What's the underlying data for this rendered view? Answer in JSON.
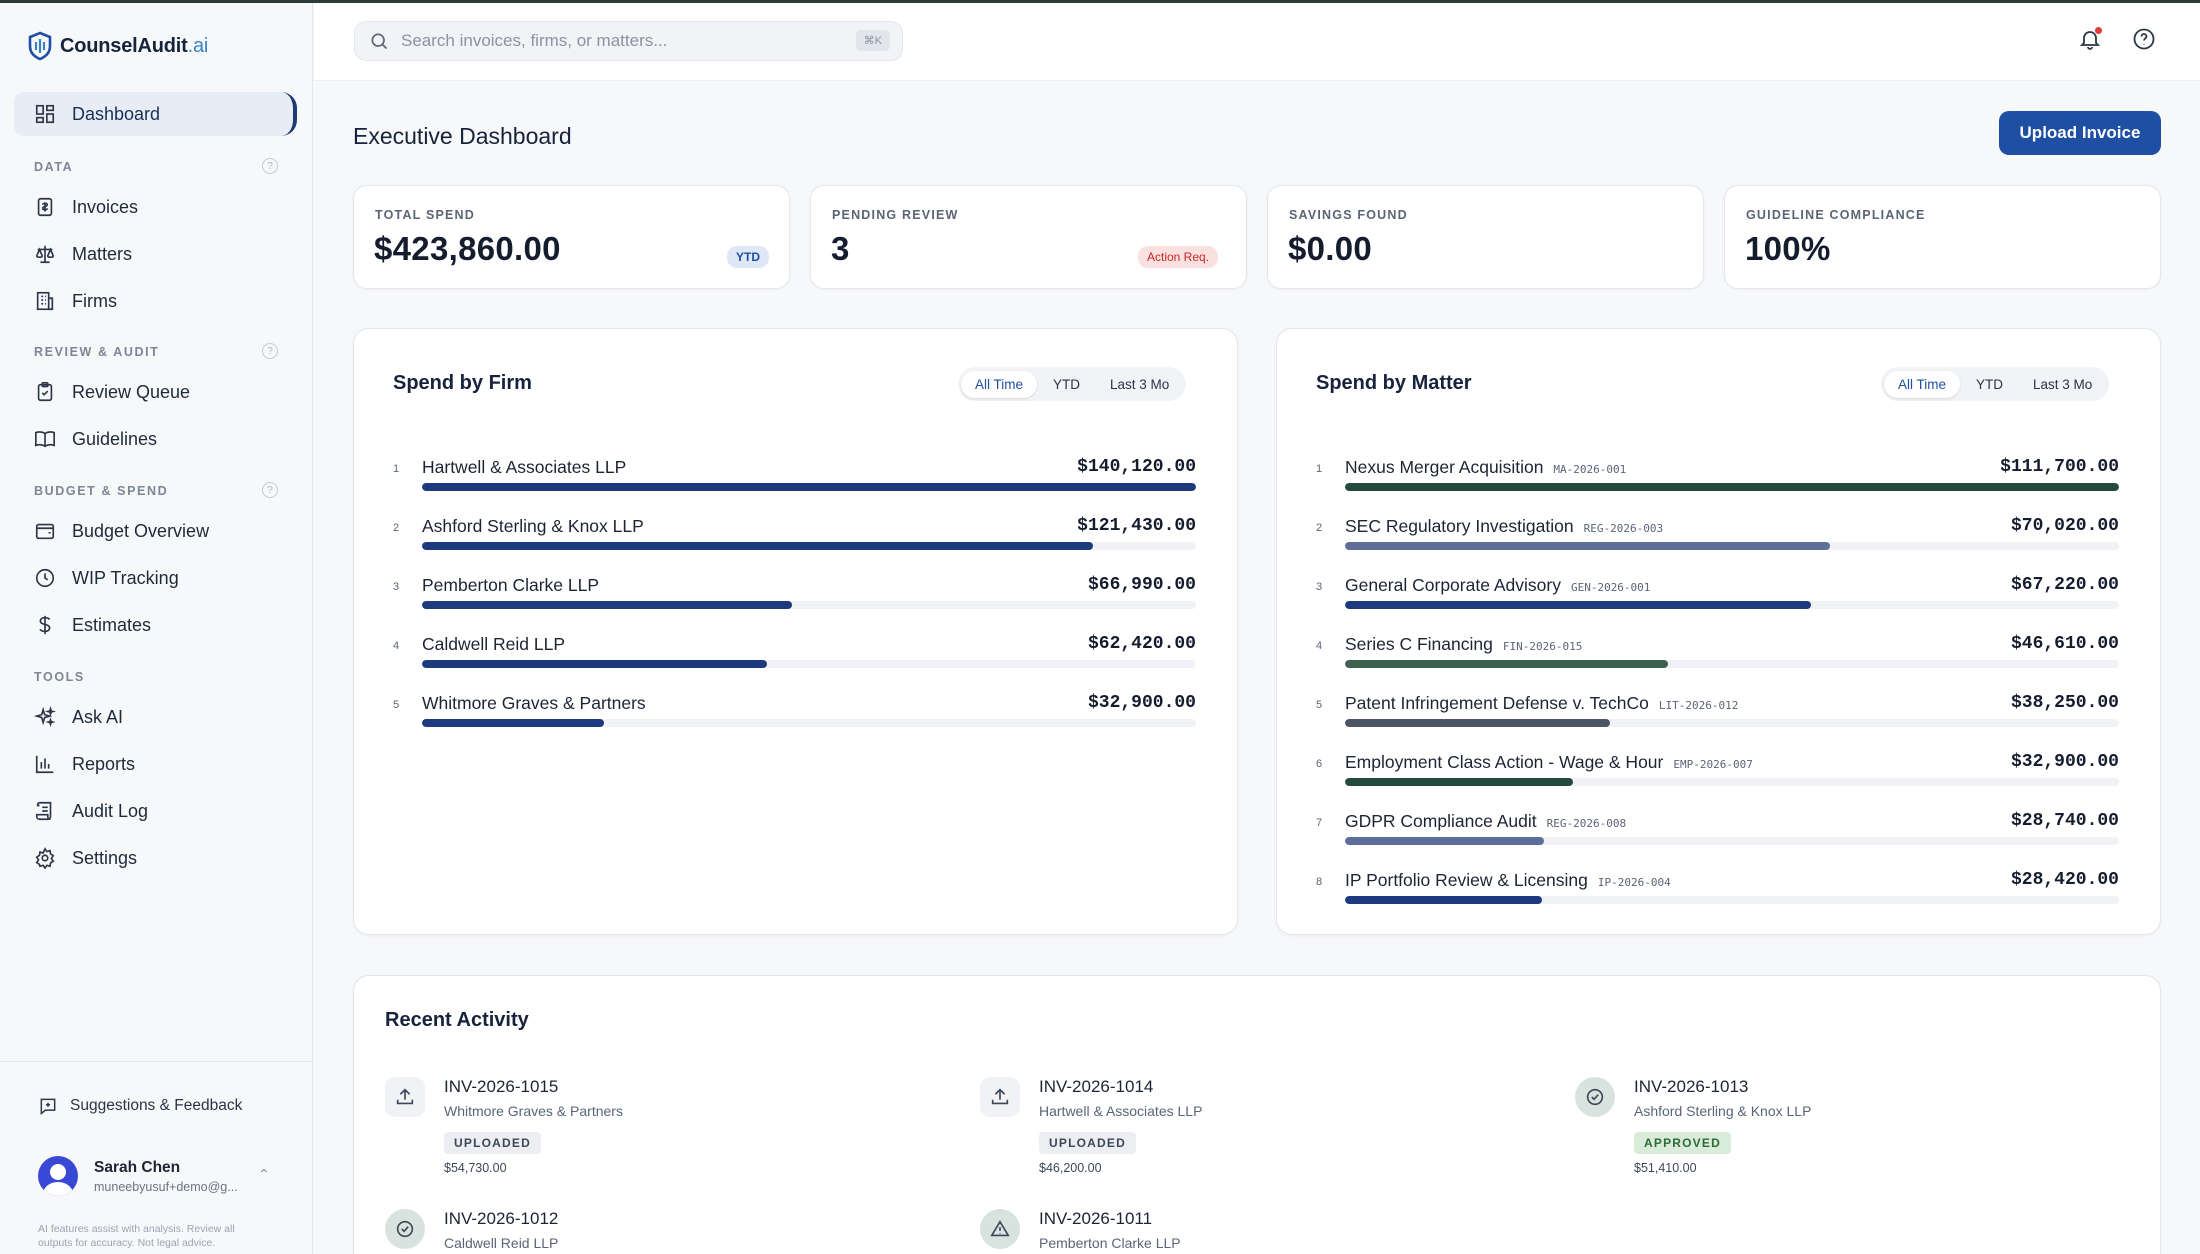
{
  "app": {
    "logo_text": "CounselAudit",
    "logo_suffix": ".ai"
  },
  "sidebar": {
    "dashboard": "Dashboard",
    "sections": {
      "data": "DATA",
      "review": "REVIEW & AUDIT",
      "budget": "BUDGET & SPEND",
      "tools": "TOOLS"
    },
    "items": {
      "invoices": "Invoices",
      "matters": "Matters",
      "firms": "Firms",
      "review_queue": "Review Queue",
      "guidelines": "Guidelines",
      "budget_overview": "Budget Overview",
      "wip_tracking": "WIP Tracking",
      "estimates": "Estimates",
      "ask_ai": "Ask AI",
      "reports": "Reports",
      "audit_log": "Audit Log",
      "settings": "Settings"
    },
    "feedback": "Suggestions & Feedback",
    "user": {
      "name": "Sarah Chen",
      "email": "muneebyusuf+demo@g..."
    },
    "disclaimer": "AI features assist with analysis. Review all outputs for accuracy. Not legal advice."
  },
  "header": {
    "search_placeholder": "Search invoices, firms, or matters...",
    "shortcut": "⌘K"
  },
  "page": {
    "title": "Executive Dashboard",
    "upload_label": "Upload Invoice"
  },
  "kpis": [
    {
      "label": "TOTAL SPEND",
      "value": "$423,860.00",
      "badge": "YTD"
    },
    {
      "label": "PENDING REVIEW",
      "value": "3",
      "badge": "Action Req."
    },
    {
      "label": "SAVINGS FOUND",
      "value": "$0.00"
    },
    {
      "label": "GUIDELINE COMPLIANCE",
      "value": "100%"
    }
  ],
  "filters": [
    "All Time",
    "YTD",
    "Last 3 Mo"
  ],
  "spend_by_firm": {
    "title": "Spend by Firm",
    "rows": [
      {
        "rank": "1",
        "name": "Hartwell & Associates LLP",
        "amount": "$140,120.00",
        "value": 140120,
        "color": "#1e3a7e"
      },
      {
        "rank": "2",
        "name": "Ashford Sterling & Knox LLP",
        "amount": "$121,430.00",
        "value": 121430,
        "color": "#1e3a7e"
      },
      {
        "rank": "3",
        "name": "Pemberton Clarke LLP",
        "amount": "$66,990.00",
        "value": 66990,
        "color": "#1e3a7e"
      },
      {
        "rank": "4",
        "name": "Caldwell Reid LLP",
        "amount": "$62,420.00",
        "value": 62420,
        "color": "#1e3a7e"
      },
      {
        "rank": "5",
        "name": "Whitmore Graves & Partners",
        "amount": "$32,900.00",
        "value": 32900,
        "color": "#1e3a7e"
      }
    ]
  },
  "spend_by_matter": {
    "title": "Spend by Matter",
    "rows": [
      {
        "rank": "1",
        "name": "Nexus Merger Acquisition",
        "code": "MA-2026-001",
        "amount": "$111,700.00",
        "value": 111700,
        "color": "#244a40"
      },
      {
        "rank": "2",
        "name": "SEC Regulatory Investigation",
        "code": "REG-2026-003",
        "amount": "$70,020.00",
        "value": 70020,
        "color": "#5d6f98"
      },
      {
        "rank": "3",
        "name": "General Corporate Advisory",
        "code": "GEN-2026-001",
        "amount": "$67,220.00",
        "value": 67220,
        "color": "#1e3a7e"
      },
      {
        "rank": "4",
        "name": "Series C Financing",
        "code": "FIN-2026-015",
        "amount": "$46,610.00",
        "value": 46610,
        "color": "#3f6152"
      },
      {
        "rank": "5",
        "name": "Patent Infringement Defense v. TechCo",
        "code": "LIT-2026-012",
        "amount": "$38,250.00",
        "value": 38250,
        "color": "#4b5566"
      },
      {
        "rank": "6",
        "name": "Employment Class Action - Wage & Hour",
        "code": "EMP-2026-007",
        "amount": "$32,900.00",
        "value": 32900,
        "color": "#244a40"
      },
      {
        "rank": "7",
        "name": "GDPR Compliance Audit",
        "code": "REG-2026-008",
        "amount": "$28,740.00",
        "value": 28740,
        "color": "#5d6f98"
      },
      {
        "rank": "8",
        "name": "IP Portfolio Review & Licensing",
        "code": "IP-2026-004",
        "amount": "$28,420.00",
        "value": 28420,
        "color": "#1e3a7e"
      }
    ]
  },
  "recent_activity": {
    "title": "Recent Activity",
    "items": [
      {
        "id": "INV-2026-1015",
        "firm": "Whitmore Graves & Partners",
        "status": "UPLOADED",
        "amount": "$54,730.00",
        "icon": "upload-icon"
      },
      {
        "id": "INV-2026-1014",
        "firm": "Hartwell & Associates LLP",
        "status": "UPLOADED",
        "amount": "$46,200.00",
        "icon": "upload-icon"
      },
      {
        "id": "INV-2026-1013",
        "firm": "Ashford Sterling & Knox LLP",
        "status": "APPROVED",
        "amount": "$51,410.00",
        "icon": "check-circle-icon"
      },
      {
        "id": "INV-2026-1012",
        "firm": "Caldwell Reid LLP",
        "icon": "check-circle-icon"
      },
      {
        "id": "INV-2026-1011",
        "firm": "Pemberton Clarke LLP",
        "icon": "warning-icon"
      }
    ]
  }
}
